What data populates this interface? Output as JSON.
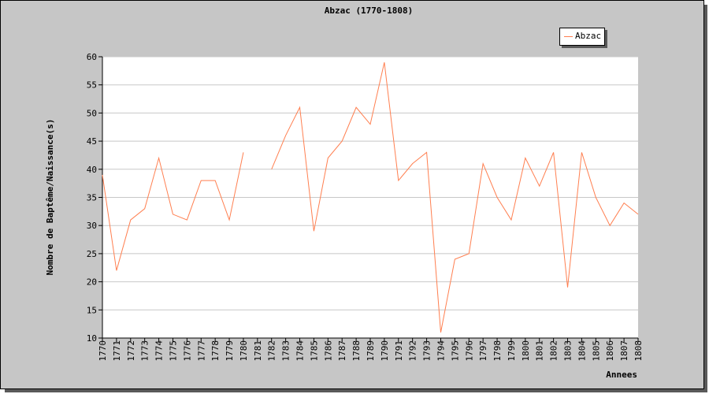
{
  "chart_data": {
    "type": "line",
    "title": "Abzac (1770-1808)",
    "xlabel": "Annees",
    "ylabel": "Nombre de Baptême/Naissance(s)",
    "categories": [
      "1770",
      "1771",
      "1772",
      "1773",
      "1774",
      "1775",
      "1776",
      "1777",
      "1778",
      "1779",
      "1780",
      "1781",
      "1782",
      "1783",
      "1784",
      "1785",
      "1786",
      "1787",
      "1788",
      "1789",
      "1790",
      "1791",
      "1792",
      "1793",
      "1794",
      "1795",
      "1796",
      "1797",
      "1798",
      "1799",
      "1800",
      "1801",
      "1802",
      "1803",
      "1804",
      "1805",
      "1806",
      "1807",
      "1808"
    ],
    "series": [
      {
        "name": "Abzac",
        "color": "#ff7f50",
        "values": [
          39,
          22,
          31,
          33,
          42,
          32,
          31,
          38,
          38,
          31,
          43,
          null,
          40,
          46,
          51,
          29,
          42,
          45,
          51,
          48,
          59,
          38,
          41,
          43,
          11,
          24,
          25,
          41,
          35,
          31,
          42,
          37,
          43,
          19,
          43,
          35,
          30,
          34,
          32
        ]
      }
    ],
    "ylim": [
      10,
      60
    ],
    "yticks": [
      10,
      15,
      20,
      25,
      30,
      35,
      40,
      45,
      50,
      55,
      60
    ],
    "grid": true,
    "legend_position": "top-right"
  }
}
